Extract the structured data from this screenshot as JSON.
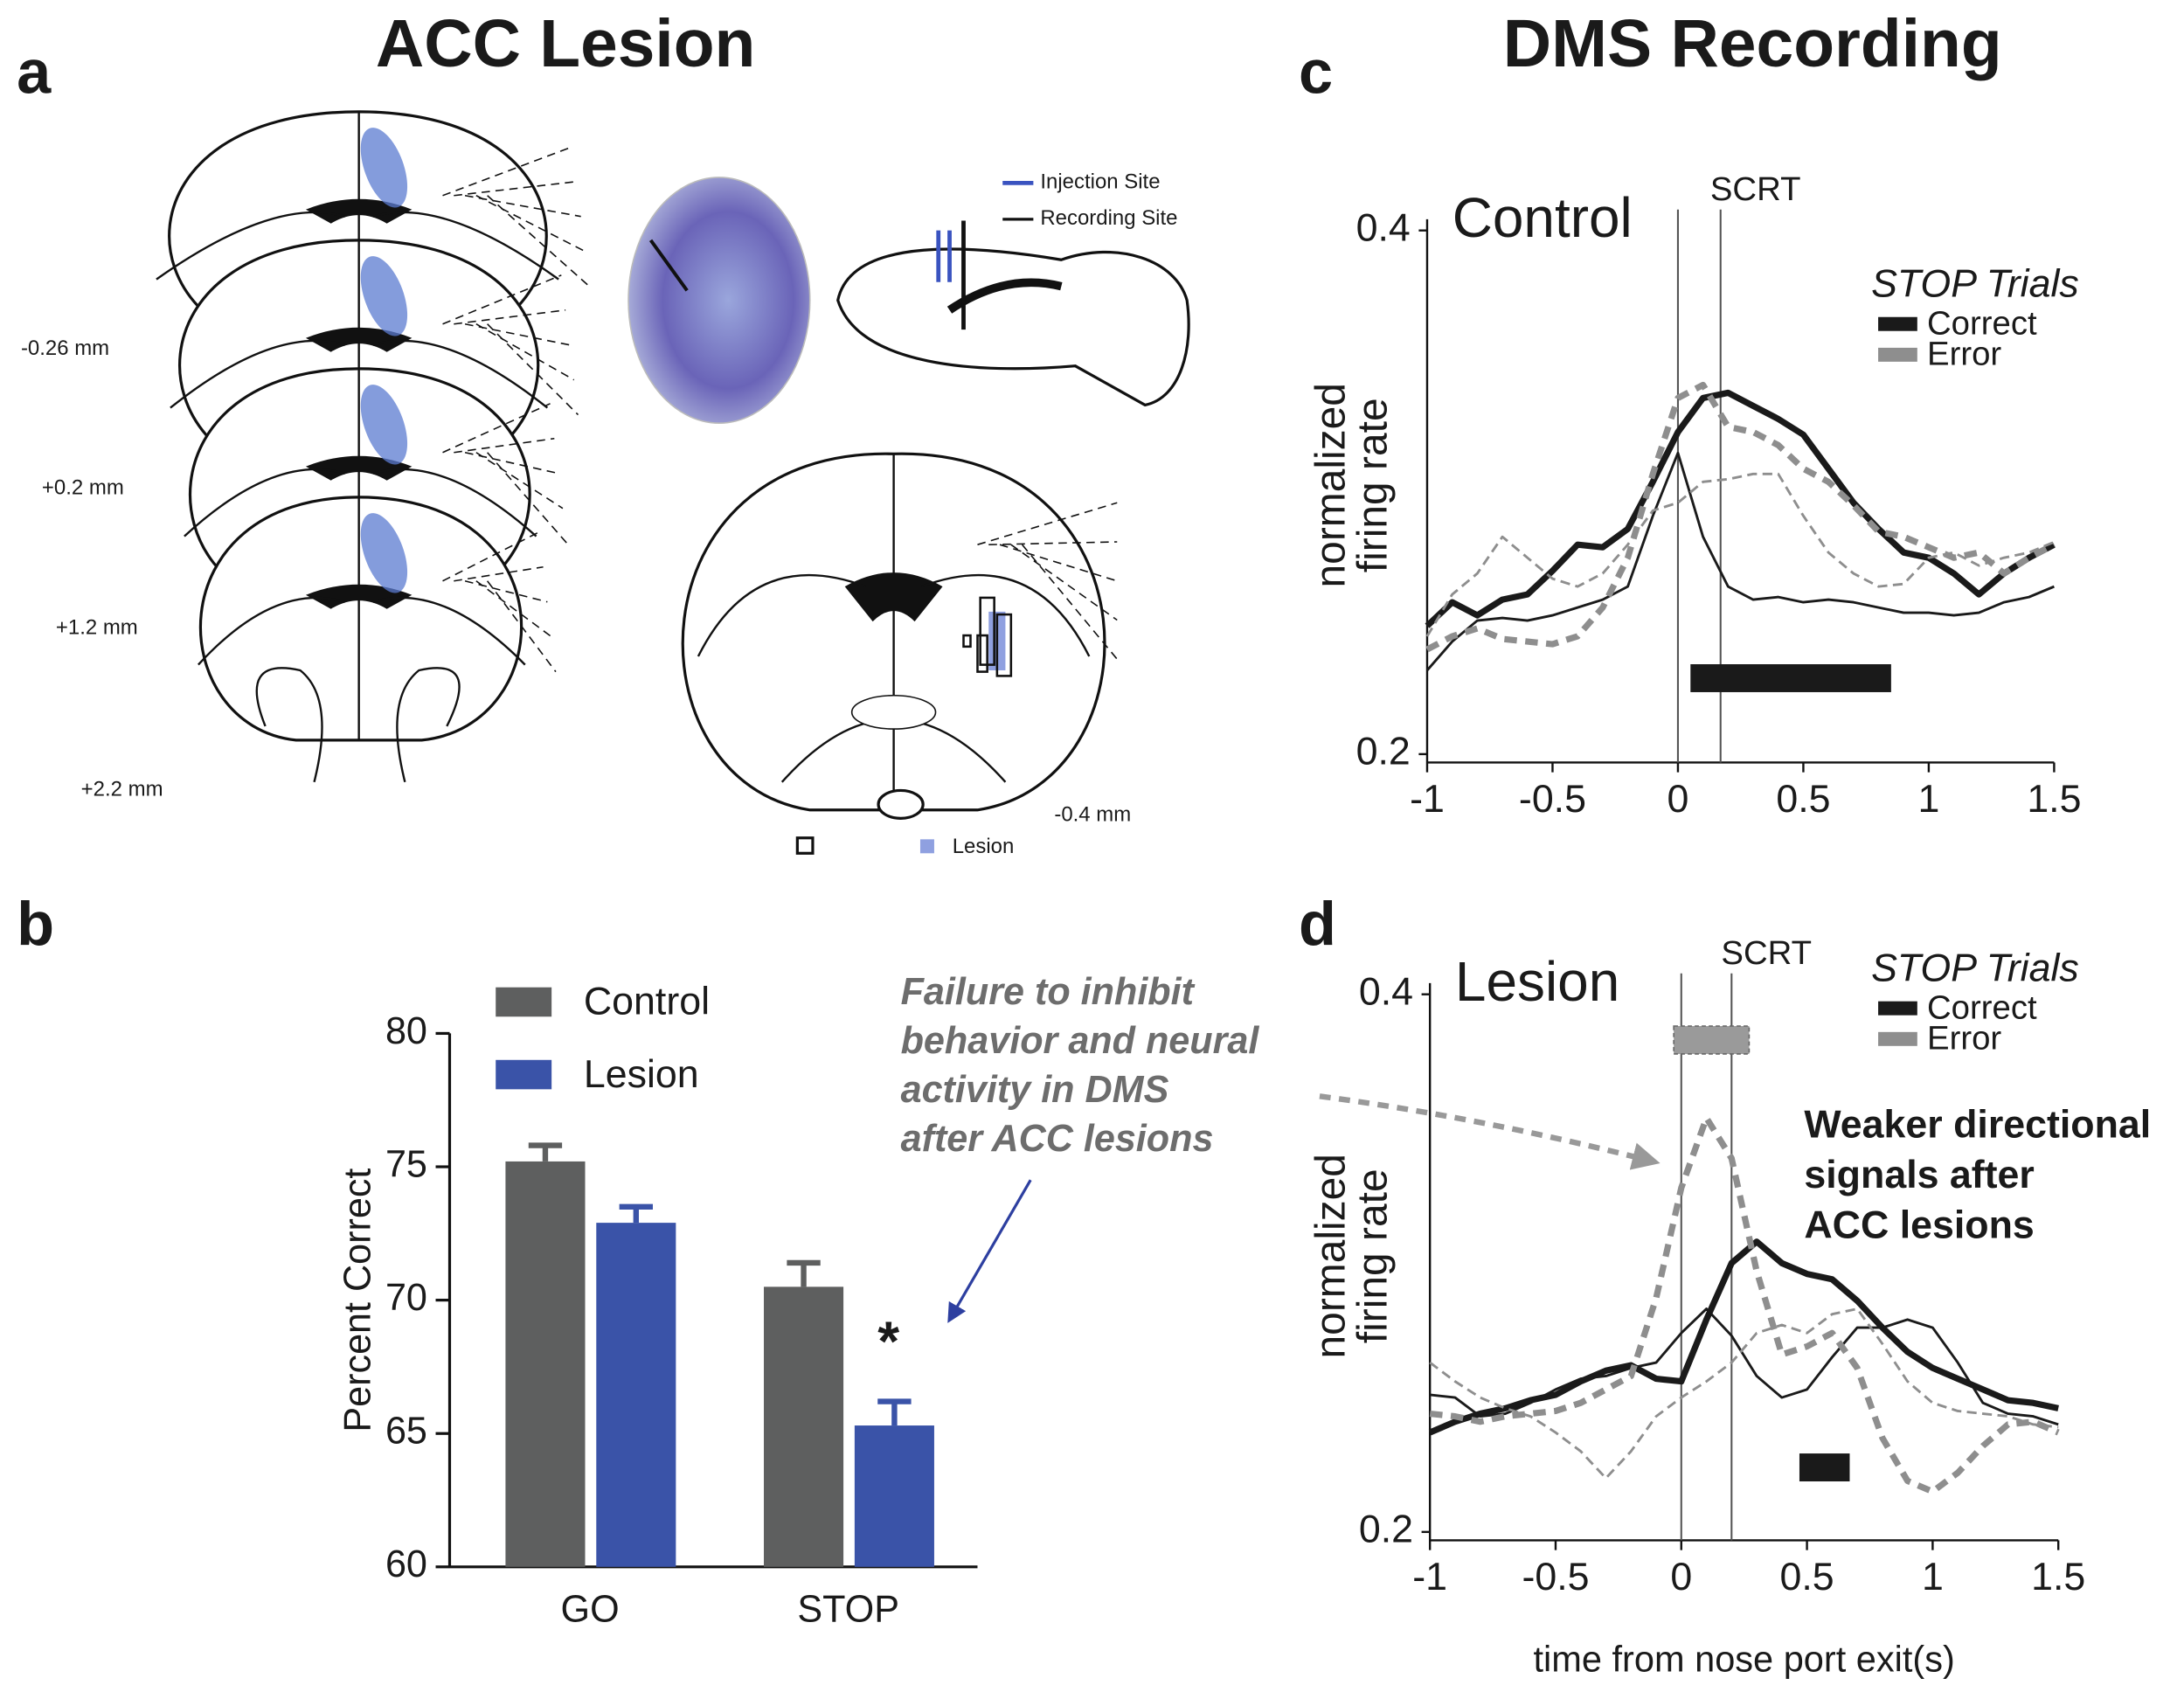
{
  "figure": {
    "panel_labels": [
      "a",
      "b",
      "c",
      "d"
    ],
    "titles": [
      "ACC Lesion",
      "DMS Recording"
    ],
    "section_labels": [
      "-0.26 mm",
      "+0.2 mm",
      "+1.2 mm",
      "+2.2 mm"
    ],
    "injection_label": "Injection Site",
    "recording_label": "Recording Site",
    "lower_section_label": "-0.4 mm",
    "lesion_label": "Lesion"
  },
  "chart_data": [
    {
      "type": "bar",
      "categories": [
        "GO",
        "STOP"
      ],
      "series": [
        {
          "name": "Control",
          "color": "#5e5f5f",
          "values": [
            75.2,
            70.5
          ],
          "errors": [
            0.6,
            0.9
          ]
        },
        {
          "name": "Lesion",
          "color": "#3a53a8",
          "values": [
            72.9,
            65.3
          ],
          "errors": [
            0.6,
            0.9
          ]
        }
      ],
      "ylim": [
        60,
        80
      ],
      "yticks": [
        60,
        65,
        70,
        75,
        80
      ],
      "ylabel": "Percent  Correct",
      "marker": "*",
      "annotation": [
        "Failure to inhibit",
        "behavior and neural",
        "activity in DMS",
        "after ACC lesions"
      ]
    },
    {
      "type": "line",
      "inset_label": "Control",
      "legend_title": "STOP Trials",
      "scrt_label": "SCRT",
      "scrt": 0.17,
      "event_x": 0,
      "xlim": [
        -1,
        1.5
      ],
      "ylim": [
        0.2,
        0.4
      ],
      "xticks": [
        -1,
        -0.5,
        0,
        0.5,
        1,
        1.5
      ],
      "yticks": [
        0.2,
        0.4
      ],
      "ylabel": [
        "normalized",
        "firing rate"
      ],
      "x": [
        -1,
        -0.9,
        -0.8,
        -0.7,
        -0.6,
        -0.5,
        -0.4,
        -0.3,
        -0.2,
        -0.1,
        0,
        0.1,
        0.2,
        0.3,
        0.4,
        0.5,
        0.6,
        0.7,
        0.8,
        0.9,
        1,
        1.1,
        1.2,
        1.3,
        1.4,
        1.5
      ],
      "series": [
        {
          "name": "Correct",
          "color": "#1a1a1a",
          "dashed": false,
          "lines": [
            {
              "style": "thick",
              "values": [
                0.249,
                0.258,
                0.253,
                0.259,
                0.261,
                0.27,
                0.28,
                0.279,
                0.286,
                0.304,
                0.323,
                0.336,
                0.338,
                0.333,
                0.328,
                0.322,
                0.309,
                0.296,
                0.286,
                0.277,
                0.275,
                0.269,
                0.261,
                0.269,
                0.275,
                0.28
              ]
            },
            {
              "style": "thin",
              "values": [
                0.232,
                0.243,
                0.251,
                0.252,
                0.251,
                0.253,
                0.256,
                0.259,
                0.264,
                0.291,
                0.315,
                0.283,
                0.264,
                0.259,
                0.26,
                0.258,
                0.259,
                0.258,
                0.256,
                0.254,
                0.254,
                0.253,
                0.254,
                0.258,
                0.26,
                0.264
              ]
            }
          ]
        },
        {
          "name": "Error",
          "color": "#8e8e8e",
          "dashed": true,
          "lines": [
            {
              "style": "thick",
              "values": [
                0.24,
                0.245,
                0.248,
                0.244,
                0.243,
                0.242,
                0.245,
                0.256,
                0.275,
                0.307,
                0.336,
                0.341,
                0.325,
                0.323,
                0.318,
                0.309,
                0.304,
                0.295,
                0.285,
                0.283,
                0.279,
                0.275,
                0.277,
                0.269,
                0.275,
                0.28
              ]
            },
            {
              "style": "thin",
              "values": [
                0.245,
                0.261,
                0.269,
                0.283,
                0.275,
                0.267,
                0.264,
                0.269,
                0.28,
                0.293,
                0.296,
                0.304,
                0.305,
                0.307,
                0.307,
                0.291,
                0.277,
                0.269,
                0.264,
                0.265,
                0.275,
                0.277,
                0.272,
                0.275,
                0.277,
                0.281
              ]
            }
          ]
        }
      ],
      "bars": [
        {
          "x": [
            0.05,
            0.85
          ],
          "y": 0.229,
          "color": "#1a1a1a",
          "dashed": false
        }
      ]
    },
    {
      "type": "line",
      "inset_label": "Lesion",
      "legend_title": "STOP Trials",
      "scrt_label": "SCRT",
      "scrt": 0.2,
      "event_x": 0,
      "xlim": [
        -1,
        1.5
      ],
      "ylim": [
        0.2,
        0.4
      ],
      "xticks": [
        -1,
        -0.5,
        0,
        0.5,
        1,
        1.5
      ],
      "yticks": [
        0.2,
        0.4
      ],
      "ylabel": [
        "normalized",
        "firing rate"
      ],
      "xlabel": "time from nose port exit(s)",
      "annotation": [
        "Weaker directional",
        "signals after",
        "ACC lesions"
      ],
      "x": [
        -1,
        -0.9,
        -0.8,
        -0.7,
        -0.6,
        -0.5,
        -0.4,
        -0.3,
        -0.2,
        -0.1,
        0,
        0.1,
        0.2,
        0.3,
        0.4,
        0.5,
        0.6,
        0.7,
        0.8,
        0.9,
        1,
        1.1,
        1.2,
        1.3,
        1.4,
        1.5
      ],
      "series": [
        {
          "name": "Correct",
          "color": "#1a1a1a",
          "dashed": false,
          "lines": [
            {
              "style": "thick",
              "values": [
                0.237,
                0.241,
                0.244,
                0.246,
                0.249,
                0.251,
                0.256,
                0.26,
                0.262,
                0.257,
                0.256,
                0.279,
                0.3,
                0.308,
                0.3,
                0.296,
                0.294,
                0.286,
                0.276,
                0.267,
                0.261,
                0.257,
                0.253,
                0.249,
                0.248,
                0.246
              ]
            },
            {
              "style": "thin",
              "values": [
                0.251,
                0.25,
                0.243,
                0.244,
                0.248,
                0.253,
                0.257,
                0.258,
                0.261,
                0.263,
                0.274,
                0.283,
                0.273,
                0.258,
                0.25,
                0.253,
                0.265,
                0.276,
                0.276,
                0.279,
                0.276,
                0.263,
                0.248,
                0.244,
                0.243,
                0.24
              ]
            }
          ]
        },
        {
          "name": "Error",
          "color": "#8e8e8e",
          "dashed": true,
          "lines": [
            {
              "style": "thick",
              "values": [
                0.244,
                0.243,
                0.241,
                0.243,
                0.244,
                0.245,
                0.248,
                0.253,
                0.258,
                0.287,
                0.328,
                0.354,
                0.339,
                0.297,
                0.266,
                0.269,
                0.274,
                0.261,
                0.235,
                0.219,
                0.215,
                0.222,
                0.232,
                0.24,
                0.241,
                0.237
              ]
            },
            {
              "style": "thin",
              "values": [
                0.263,
                0.256,
                0.25,
                0.246,
                0.243,
                0.237,
                0.23,
                0.22,
                0.23,
                0.243,
                0.25,
                0.256,
                0.263,
                0.274,
                0.277,
                0.274,
                0.281,
                0.283,
                0.27,
                0.256,
                0.248,
                0.245,
                0.244,
                0.243,
                0.24,
                0.239
              ]
            }
          ]
        }
      ],
      "bars": [
        {
          "x": [
            0.47,
            0.67
          ],
          "y": 0.224,
          "color": "#1a1a1a",
          "dashed": false
        },
        {
          "x": [
            -0.03,
            0.27
          ],
          "y": 0.383,
          "color": "#9a9a9a",
          "dashed": true
        }
      ]
    }
  ]
}
